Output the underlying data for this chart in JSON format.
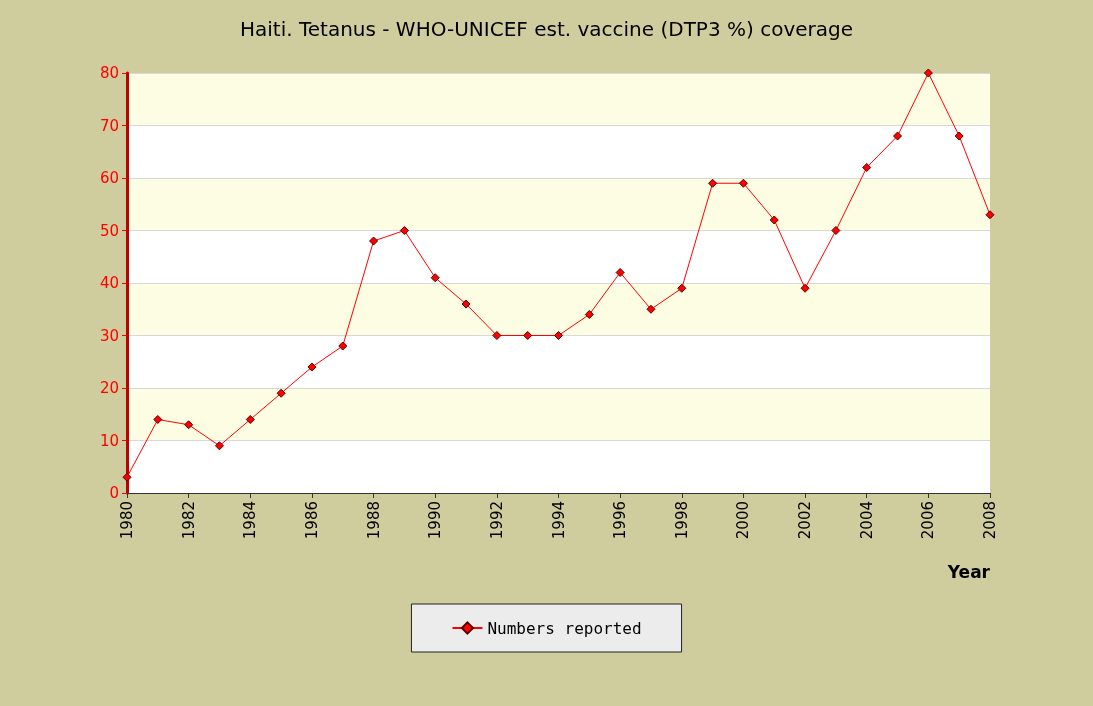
{
  "chart_data": {
    "type": "line",
    "title": "Haiti. Tetanus - WHO-UNICEF est. vaccine (DTP3 %) coverage",
    "xlabel": "Year",
    "x": [
      1980,
      1981,
      1982,
      1983,
      1984,
      1985,
      1986,
      1987,
      1988,
      1989,
      1990,
      1991,
      1992,
      1993,
      1994,
      1995,
      1996,
      1997,
      1998,
      1999,
      2000,
      2001,
      2002,
      2003,
      2004,
      2005,
      2006,
      2007,
      2008
    ],
    "series": [
      {
        "name": "Numbers reported",
        "color": "#ff0000",
        "values": [
          3,
          14,
          13,
          9,
          14,
          19,
          24,
          28,
          48,
          50,
          41,
          36,
          30,
          30,
          30,
          34,
          42,
          35,
          39,
          59,
          59,
          52,
          39,
          50,
          62,
          68,
          80,
          68,
          53
        ]
      }
    ],
    "xlim": [
      1980,
      2008
    ],
    "xticks": [
      1980,
      1982,
      1984,
      1986,
      1988,
      1990,
      1992,
      1994,
      1996,
      1998,
      2000,
      2002,
      2004,
      2006,
      2008
    ],
    "ylim": [
      0,
      80
    ],
    "yticks": [
      0,
      10,
      20,
      30,
      40,
      50,
      60,
      70,
      80
    ],
    "grid": "y",
    "legend": "bottom",
    "marker": "diamond",
    "line_style": "solid"
  }
}
